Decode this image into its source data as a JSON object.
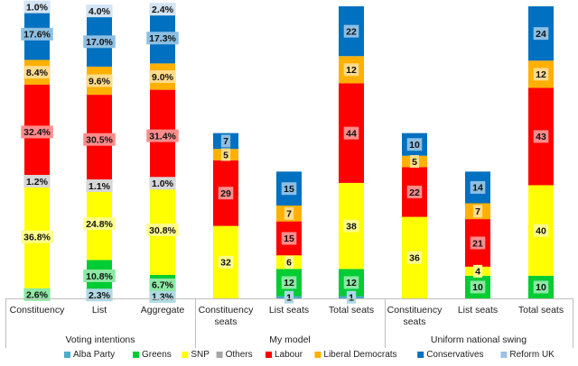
{
  "colors": {
    "Alba Party": "#4bacc6",
    "Greens": "#00cc33",
    "SNP": "#ffff00",
    "Others": "#a6a6a6",
    "Labour": "#ff0000",
    "Liberal Democrats": "#ffb000",
    "Conservatives": "#0070c0",
    "Reform UK": "#9dc3e6"
  },
  "chart_data": {
    "type": "bar",
    "stacked": true,
    "legend_position": "bottom",
    "grid": false,
    "groups": [
      {
        "label": "Voting intentions",
        "categories": [
          "Constituency",
          "List",
          "Aggregate"
        ],
        "unit": "percent"
      },
      {
        "label": "My model",
        "categories": [
          "Constituency seats",
          "List seats",
          "Total seats"
        ],
        "unit": "seats"
      },
      {
        "label": "Uniform national swing",
        "categories": [
          "Constituency seats",
          "List seats",
          "Total seats"
        ],
        "unit": "seats"
      }
    ],
    "series_order": [
      "Alba Party",
      "Greens",
      "SNP",
      "Others",
      "Labour",
      "Liberal Democrats",
      "Conservatives",
      "Reform UK"
    ],
    "bars": [
      {
        "category": "Constituency",
        "group": "Voting intentions",
        "values": {
          "Alba Party": 0,
          "Greens": 2.6,
          "SNP": 36.8,
          "Others": 1.2,
          "Labour": 32.4,
          "Liberal Democrats": 8.4,
          "Conservatives": 17.6,
          "Reform UK": 1.0
        },
        "labels": {
          "Greens": "2.6%",
          "SNP": "36.8%",
          "Others": "1.2%",
          "Labour": "32.4%",
          "Liberal Democrats": "8.4%",
          "Conservatives": "17.6%",
          "Reform UK": "1.0%"
        }
      },
      {
        "category": "List",
        "group": "Voting intentions",
        "values": {
          "Alba Party": 2.3,
          "Greens": 10.8,
          "SNP": 24.8,
          "Others": 1.1,
          "Labour": 30.5,
          "Liberal Democrats": 9.6,
          "Conservatives": 17.0,
          "Reform UK": 4.0
        },
        "labels": {
          "Alba Party": "2.3%",
          "Greens": "10.8%",
          "SNP": "24.8%",
          "Others": "1.1%",
          "Labour": "30.5%",
          "Liberal Democrats": "9.6%",
          "Conservatives": "17.0%",
          "Reform UK": "4.0%"
        }
      },
      {
        "category": "Aggregate",
        "group": "Voting intentions",
        "values": {
          "Alba Party": 1.3,
          "Greens": 6.7,
          "SNP": 30.8,
          "Others": 1.0,
          "Labour": 31.4,
          "Liberal Democrats": 9.0,
          "Conservatives": 17.3,
          "Reform UK": 2.4
        },
        "labels": {
          "Alba Party": "1.3%",
          "Greens": "6.7%",
          "SNP": "30.8%",
          "Others": "1.0%",
          "Labour": "31.4%",
          "Liberal Democrats": "9.0%",
          "Conservatives": "17.3%",
          "Reform UK": "2.4%"
        }
      },
      {
        "category": "Constituency seats",
        "group": "My model",
        "values": {
          "Alba Party": 0,
          "Greens": 0,
          "SNP": 32,
          "Others": 0,
          "Labour": 29,
          "Liberal Democrats": 5,
          "Conservatives": 7,
          "Reform UK": 0
        },
        "labels": {
          "SNP": "32",
          "Labour": "29",
          "Liberal Democrats": "5",
          "Conservatives": "7"
        }
      },
      {
        "category": "List seats",
        "group": "My model",
        "values": {
          "Alba Party": 1,
          "Greens": 12,
          "SNP": 6,
          "Others": 0,
          "Labour": 15,
          "Liberal Democrats": 7,
          "Conservatives": 15,
          "Reform UK": 0
        },
        "labels": {
          "Alba Party": "1",
          "Greens": "12",
          "SNP": "6",
          "Labour": "15",
          "Liberal Democrats": "7",
          "Conservatives": "15"
        }
      },
      {
        "category": "Total seats",
        "group": "My model",
        "values": {
          "Alba Party": 1,
          "Greens": 12,
          "SNP": 38,
          "Others": 0,
          "Labour": 44,
          "Liberal Democrats": 12,
          "Conservatives": 22,
          "Reform UK": 0
        },
        "labels": {
          "Alba Party": "1",
          "Greens": "12",
          "SNP": "38",
          "Labour": "44",
          "Liberal Democrats": "12",
          "Conservatives": "22"
        }
      },
      {
        "category": "Constituency seats",
        "group": "Uniform national swing",
        "values": {
          "Alba Party": 0,
          "Greens": 0,
          "SNP": 36,
          "Others": 0,
          "Labour": 22,
          "Liberal Democrats": 5,
          "Conservatives": 10,
          "Reform UK": 0
        },
        "labels": {
          "SNP": "36",
          "Labour": "22",
          "Liberal Democrats": "5",
          "Conservatives": "10"
        }
      },
      {
        "category": "List seats",
        "group": "Uniform national swing",
        "values": {
          "Alba Party": 0,
          "Greens": 10,
          "SNP": 4,
          "Others": 0,
          "Labour": 21,
          "Liberal Democrats": 7,
          "Conservatives": 14,
          "Reform UK": 0
        },
        "labels": {
          "Greens": "10",
          "SNP": "4",
          "Labour": "21",
          "Liberal Democrats": "7",
          "Conservatives": "14"
        }
      },
      {
        "category": "Total seats",
        "group": "Uniform national swing",
        "values": {
          "Alba Party": 0,
          "Greens": 10,
          "SNP": 40,
          "Others": 0,
          "Labour": 43,
          "Liberal Democrats": 12,
          "Conservatives": 24,
          "Reform UK": 0
        },
        "labels": {
          "Greens": "10",
          "SNP": "40",
          "Labour": "43",
          "Liberal Democrats": "12",
          "Conservatives": "24"
        }
      }
    ],
    "legend": [
      "Alba Party",
      "Greens",
      "SNP",
      "Others",
      "Labour",
      "Liberal Democrats",
      "Conservatives",
      "Reform UK"
    ]
  }
}
